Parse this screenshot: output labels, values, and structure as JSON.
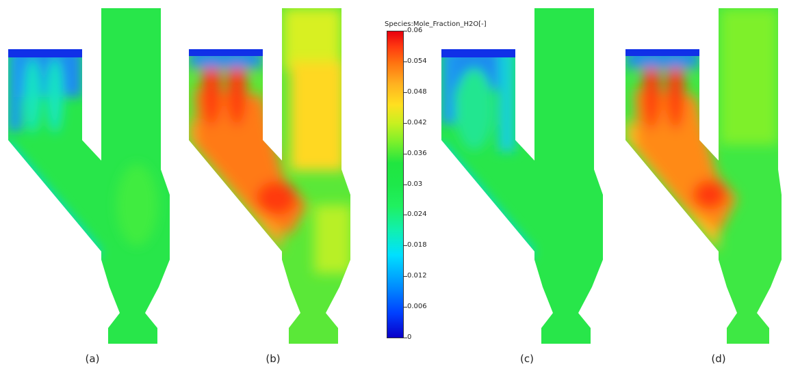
{
  "colorbar": {
    "title": "Species:Mole_Fraction_H2O[-]",
    "min": 0,
    "max": 0.06,
    "ticks": [
      "0.06",
      "0.054",
      "0.048",
      "0.042",
      "0.036",
      "0.03",
      "0.024",
      "0.018",
      "0.012",
      "0.006",
      "0"
    ],
    "colors": [
      "#0a00c8",
      "#0090ff",
      "#00e0ff",
      "#20f060",
      "#1ee84a",
      "#c8f020",
      "#ffe020",
      "#ff7010",
      "#e8000e"
    ]
  },
  "panels": [
    {
      "label": "(a)",
      "variant": "low"
    },
    {
      "label": "(b)",
      "variant": "high"
    },
    {
      "label": "(c)",
      "variant": "low"
    },
    {
      "label": "(d)",
      "variant": "high"
    }
  ]
}
